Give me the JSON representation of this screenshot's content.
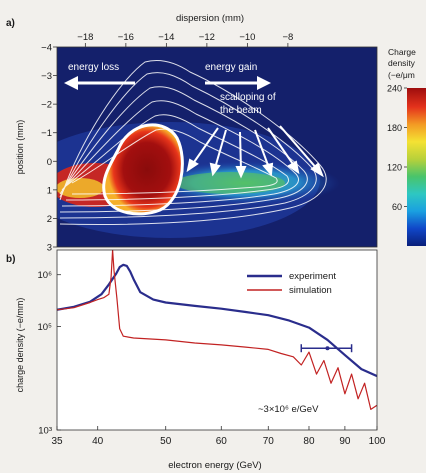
{
  "chart_data": [
    {
      "panel_label": "a)",
      "type": "heatmap",
      "top_axis_label": "dispersion (mm)",
      "top_ticks": [
        "−18",
        "−16",
        "−14",
        "−12",
        "−10",
        "−8"
      ],
      "top_tick_values": [
        -18,
        -16,
        -14,
        -12,
        -10,
        -8
      ],
      "top_range": [
        -19.4,
        -3.6
      ],
      "ylabel": "position (mm)",
      "yticks": [
        "−4",
        "−3",
        "−2",
        "−1",
        "0",
        "1",
        "2",
        "3"
      ],
      "ytick_values": [
        -4,
        -3,
        -2,
        -1,
        0,
        1,
        2,
        3
      ],
      "ylim": [
        -4,
        3
      ],
      "annotations": {
        "energy_loss": "energy loss",
        "energy_gain": "energy gain",
        "scalloping_line1": "scalloping of",
        "scalloping_line2": "the beam"
      },
      "colorbar": {
        "title_line1": "Charge",
        "title_line2": "density",
        "title_line3": "(−e/μm",
        "ticks": [
          "240",
          "180",
          "120",
          "60"
        ],
        "tick_values": [
          240,
          180,
          120,
          60
        ],
        "range": [
          0,
          240
        ],
        "colors": [
          "#0a1f7a",
          "#1046c8",
          "#1aa0e0",
          "#2ec7c2",
          "#49c46b",
          "#b8d13a",
          "#f4e233",
          "#f39a24",
          "#e4321c",
          "#9e0d0d"
        ]
      },
      "colors": {
        "background": "#14206b",
        "contour": "#ffffff",
        "core": "#8c0d0d"
      }
    },
    {
      "panel_label": "b)",
      "type": "line",
      "xlabel": "electron energy (GeV)",
      "ylabel": "charge density (−e/mm)",
      "x_scale": "log",
      "y_scale": "log",
      "xlim": [
        35,
        100
      ],
      "ylim": [
        1000,
        3000000
      ],
      "xticks": [
        35,
        40,
        50,
        60,
        70,
        80,
        90,
        100
      ],
      "xtick_labels": [
        "35",
        "40",
        "50",
        "60",
        "70",
        "80",
        "90",
        "100"
      ],
      "yticks": [
        1000,
        100000,
        1000000
      ],
      "ytick_labels": [
        "10³",
        "10⁵",
        "10⁶"
      ],
      "legend_position": "top-right",
      "annotation": "~3×10⁶ e/GeV",
      "error_bar": {
        "x_center": 85,
        "x_low": 78,
        "x_high": 92,
        "y": 38000
      },
      "series": [
        {
          "name": "experiment",
          "color": "#2a2d8c",
          "x": [
            35,
            37,
            39,
            40.5,
            41.5,
            42.5,
            43,
            43.5,
            44,
            44.5,
            45,
            46,
            48,
            50,
            55,
            60,
            65,
            70,
            75,
            80,
            85,
            90,
            95,
            100
          ],
          "y": [
            210000,
            240000,
            300000,
            420000,
            650000,
            1050000,
            1400000,
            1550000,
            1480000,
            1150000,
            820000,
            460000,
            330000,
            290000,
            250000,
            220000,
            190000,
            165000,
            130000,
            95000,
            55000,
            28000,
            15000,
            11000
          ]
        },
        {
          "name": "simulation",
          "color": "#c22222",
          "x": [
            35,
            37,
            39,
            40,
            40.8,
            41.5,
            41.8,
            42,
            42.2,
            42.6,
            43,
            43.5,
            45,
            50,
            55,
            60,
            65,
            70,
            73,
            76,
            78,
            80,
            82,
            84,
            86,
            88,
            90,
            92,
            94,
            96,
            98,
            100
          ],
          "y": [
            210000,
            230000,
            290000,
            330000,
            360000,
            420000,
            900000,
            3000000,
            1200000,
            350000,
            90000,
            65000,
            60000,
            55000,
            48000,
            44000,
            40000,
            36000,
            30000,
            26000,
            18000,
            32000,
            12000,
            22000,
            8000,
            16000,
            5000,
            12000,
            4000,
            8000,
            2500,
            3000
          ]
        }
      ]
    }
  ]
}
